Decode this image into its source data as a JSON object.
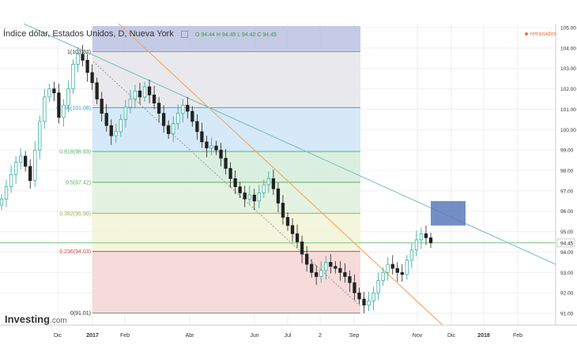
{
  "header": {
    "title": "Índice dólar, Estados Unidos, D, Nueva York",
    "ohlc": "O 94.44  H 94.45  L 94.42  C 94.45"
  },
  "delayed_label": "retrasados",
  "logo": {
    "name": "Investing",
    "suffix": ".com"
  },
  "colors": {
    "up": "#26a69a",
    "down": "#222222",
    "fib_0": "#e06666",
    "fib_0236": "#e6b8b8",
    "price_line": "#7ac47a",
    "trend_orange": "#f4a460",
    "trend_teal": "#7fbfbf",
    "rect": "#5b7ab8"
  },
  "chart_data": {
    "type": "candlestick",
    "title": "Índice dólar, Estados Unidos, D, Nueva York",
    "ylim": [
      90.4,
      105.2
    ],
    "y_ticks": [
      91.0,
      92.0,
      93.0,
      94.0,
      95.0,
      96.0,
      97.0,
      98.0,
      99.0,
      100.0,
      101.0,
      102.0,
      103.0,
      104.0,
      105.0
    ],
    "x_ticks": [
      "Dic",
      "2017",
      "Feb",
      "Abr",
      "Jun",
      "Jul",
      "2",
      "Sep",
      "Nov",
      "Dic",
      "2018",
      "Feb"
    ],
    "bold_x_ticks": [
      "2017",
      "2018"
    ],
    "current_price": 94.45,
    "fibonacci": [
      {
        "label": "1(103.82)",
        "value": 103.82
      },
      {
        "label": "0.786(101.08)",
        "value": 101.08
      },
      {
        "label": "0.618(98.93)",
        "value": 98.93
      },
      {
        "label": "0.5(97.42)",
        "value": 97.42
      },
      {
        "label": "0.382(95.90)",
        "value": 95.9
      },
      {
        "label": "0.236(94.03)",
        "value": 94.03
      },
      {
        "label": "0(91.01)",
        "value": 91.01
      }
    ],
    "closes": [
      96.6,
      97.2,
      97.8,
      98.4,
      98.7,
      98.2,
      97.5,
      99.0,
      100.4,
      101.6,
      102.0,
      101.8,
      100.6,
      101.2,
      102.0,
      103.2,
      103.7,
      103.4,
      102.8,
      102.3,
      101.5,
      100.8,
      100.2,
      99.7,
      99.9,
      100.5,
      101.1,
      101.5,
      101.9,
      101.6,
      102.1,
      101.7,
      101.3,
      100.8,
      100.2,
      99.8,
      100.3,
      100.8,
      101.2,
      100.9,
      100.4,
      99.9,
      99.4,
      99.1,
      99.2,
      99.0,
      98.6,
      98.1,
      97.6,
      97.2,
      96.9,
      96.6,
      96.8,
      96.5,
      96.9,
      97.3,
      97.6,
      97.1,
      96.4,
      95.7,
      95.3,
      94.9,
      94.5,
      93.9,
      93.4,
      93.0,
      92.8,
      93.1,
      93.5,
      93.3,
      93.2,
      93.0,
      92.8,
      92.5,
      92.0,
      91.7,
      91.4,
      91.6,
      92.0,
      92.6,
      93.0,
      93.4,
      93.2,
      93.0,
      92.9,
      93.6,
      94.1,
      94.6,
      94.9,
      94.7,
      94.45
    ],
    "series": [
      {
        "name": "Índice dólar",
        "values": [
          96.6,
          97.2,
          97.8,
          98.4,
          98.7,
          98.2,
          97.5,
          99.0,
          100.4,
          101.6,
          102.0,
          101.8,
          100.6,
          101.2,
          102.0,
          103.2,
          103.7,
          103.4,
          102.8,
          102.3,
          101.5,
          100.8,
          100.2,
          99.7,
          99.9,
          100.5,
          101.1,
          101.5,
          101.9,
          101.6,
          102.1,
          101.7,
          101.3,
          100.8,
          100.2,
          99.8,
          100.3,
          100.8,
          101.2,
          100.9,
          100.4,
          99.9,
          99.4,
          99.1,
          99.2,
          99.0,
          98.6,
          98.1,
          97.6,
          97.2,
          96.9,
          96.6,
          96.8,
          96.5,
          96.9,
          97.3,
          97.6,
          97.1,
          96.4,
          95.7,
          95.3,
          94.9,
          94.5,
          93.9,
          93.4,
          93.0,
          92.8,
          93.1,
          93.5,
          93.3,
          93.2,
          93.0,
          92.8,
          92.5,
          92.0,
          91.7,
          91.4,
          91.6,
          92.0,
          92.6,
          93.0,
          93.4,
          93.2,
          93.0,
          92.9,
          93.6,
          94.1,
          94.6,
          94.9,
          94.7,
          94.45
        ]
      }
    ],
    "rectangle_zone": {
      "y_top": 96.5,
      "y_bottom": 95.3,
      "x_from": "Nov",
      "x_to": "Dic"
    }
  }
}
